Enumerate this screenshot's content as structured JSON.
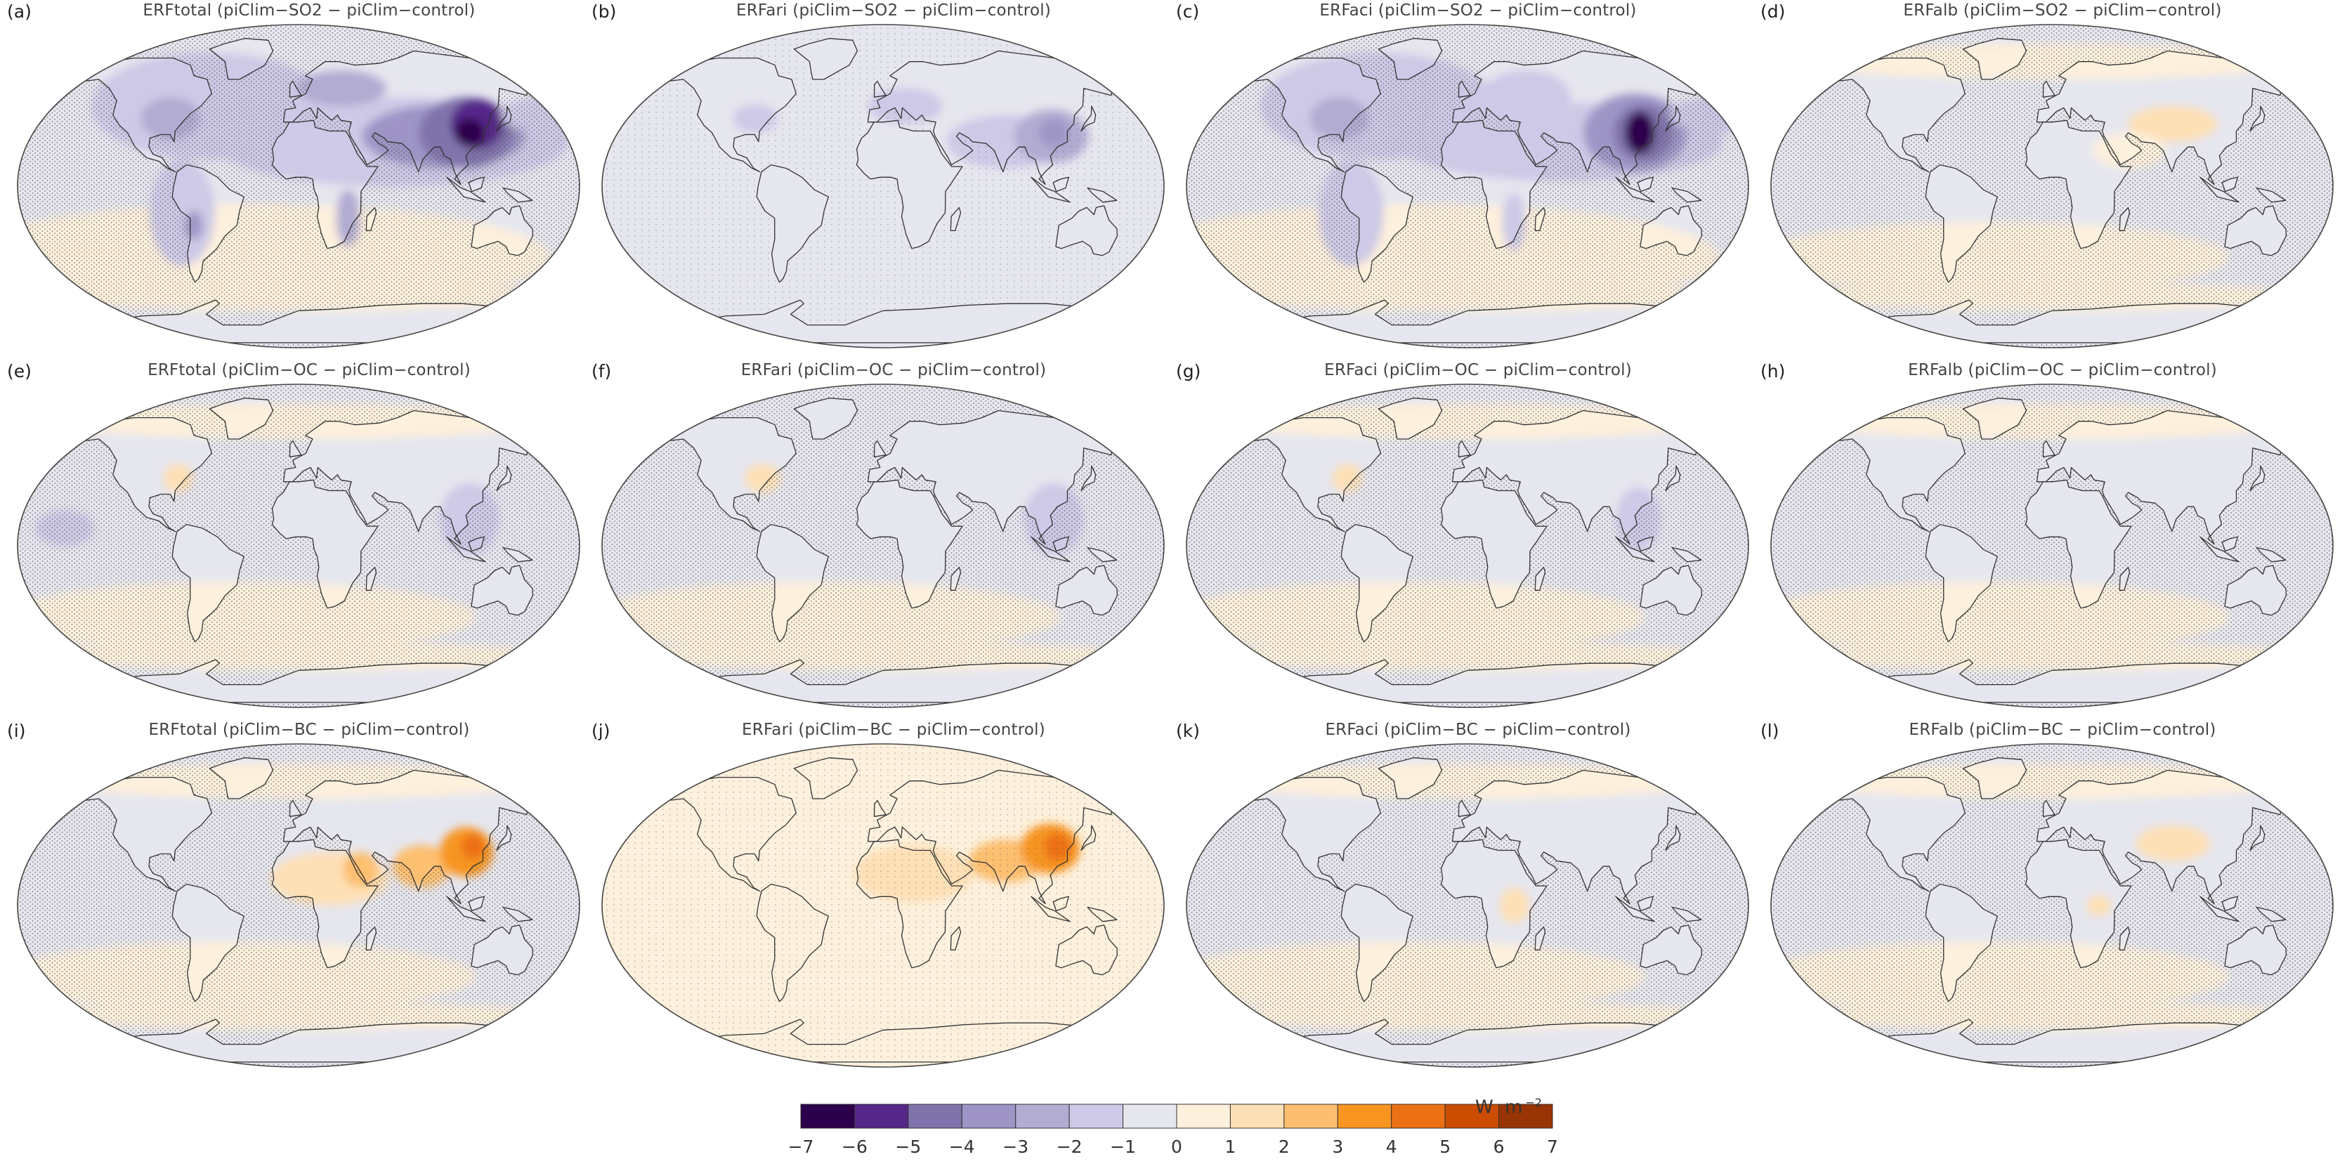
{
  "panels": [
    {
      "letter": "(a)",
      "title": "ERFtotal (piClim−SO2 − piClim−control)",
      "field": "so2_total"
    },
    {
      "letter": "(b)",
      "title": "ERFari (piClim−SO2 − piClim−control)",
      "field": "so2_ari"
    },
    {
      "letter": "(c)",
      "title": "ERFaci (piClim−SO2 − piClim−control)",
      "field": "so2_aci"
    },
    {
      "letter": "(d)",
      "title": "ERFalb (piClim−SO2 − piClim−control)",
      "field": "so2_alb"
    },
    {
      "letter": "(e)",
      "title": "ERFtotal (piClim−OC − piClim−control)",
      "field": "oc_total"
    },
    {
      "letter": "(f)",
      "title": "ERFari (piClim−OC − piClim−control)",
      "field": "oc_ari"
    },
    {
      "letter": "(g)",
      "title": "ERFaci (piClim−OC − piClim−control)",
      "field": "oc_aci"
    },
    {
      "letter": "(h)",
      "title": "ERFalb (piClim−OC − piClim−control)",
      "field": "oc_alb"
    },
    {
      "letter": "(i)",
      "title": "ERFtotal (piClim−BC − piClim−control)",
      "field": "bc_total"
    },
    {
      "letter": "(j)",
      "title": "ERFari (piClim−BC − piClim−control)",
      "field": "bc_ari"
    },
    {
      "letter": "(k)",
      "title": "ERFaci (piClim−BC − piClim−control)",
      "field": "bc_aci"
    },
    {
      "letter": "(l)",
      "title": "ERFalb (piClim−BC − piClim−control)",
      "field": "bc_alb"
    }
  ],
  "colorbar": {
    "units_base": "W m",
    "units_exp": "−2",
    "tick_labels": [
      "−7",
      "−6",
      "−5",
      "−4",
      "−3",
      "−2",
      "−1",
      "0",
      "1",
      "2",
      "3",
      "4",
      "5",
      "6",
      "7"
    ],
    "colors": [
      "#2d004b",
      "#542788",
      "#8073ac",
      "#9e95c6",
      "#b2abd2",
      "#cdc9e6",
      "#e6e6ef",
      "#fdf0dc",
      "#fee0b6",
      "#fdbf6f",
      "#f79520",
      "#ec7014",
      "#cc4c02",
      "#993404"
    ]
  },
  "colors": {
    "ocean_stipple": "#555555",
    "coast_line": "#333333",
    "map_border": "#444444"
  }
}
